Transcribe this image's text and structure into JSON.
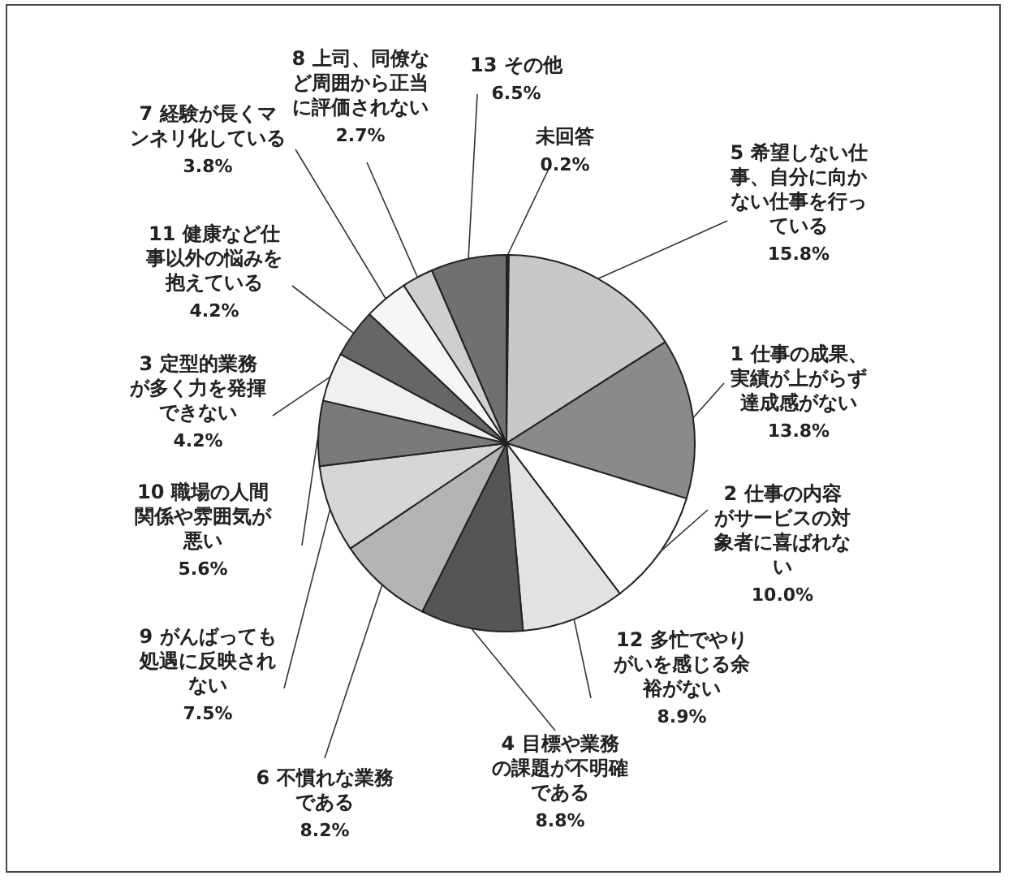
{
  "chart_data": {
    "type": "pie",
    "categories": [
      "未回答",
      "5 希望しない仕事、自分に向かない仕事を行っている",
      "1 仕事の成果、実績が上がらず達成感がない",
      "2 仕事の内容がサービスの対象者に喜ばれない",
      "12 多忙でやりがいを感じる余裕がない",
      "4 目標や業務の課題が不明確である",
      "6 不慣れな業務である",
      "9 がんばっても処遇に反映されない",
      "10 職場の人間関係や雰囲気が悪い",
      "3 定型的業務が多く力を発揮できない",
      "11 健康など仕事以外の悩みを抱えている",
      "7 経験が長くマンネリ化している",
      "8 上司、同僚など周囲から正当に評価されない",
      "13 その他"
    ],
    "values": [
      0.2,
      15.8,
      13.8,
      10.0,
      8.9,
      8.8,
      8.2,
      7.5,
      5.6,
      4.2,
      4.2,
      3.8,
      2.7,
      6.5
    ],
    "value_labels": [
      "0.2%",
      "15.8%",
      "13.8%",
      "10.0%",
      "8.9%",
      "8.8%",
      "8.2%",
      "7.5%",
      "5.6%",
      "4.2%",
      "4.2%",
      "3.8%",
      "2.7%",
      "6.5%"
    ],
    "colors": [
      "#333333",
      "#c8c8c8",
      "#8a8a8a",
      "#ffffff",
      "#e2e2e2",
      "#555555",
      "#b4b4b4",
      "#d6d6d6",
      "#7a7a7a",
      "#f0f0f0",
      "#666666",
      "#f6f6f6",
      "#cfcfcf",
      "#707070"
    ]
  }
}
